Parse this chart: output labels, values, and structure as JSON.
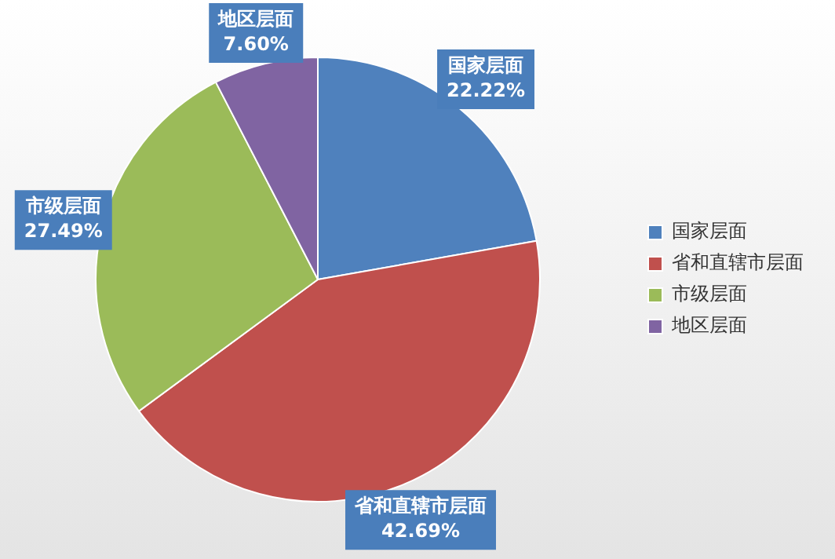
{
  "chart_data": {
    "type": "pie",
    "categories": [
      "国家层面",
      "省和直辖市层面",
      "市级层面",
      "地区层面"
    ],
    "values": [
      22.22,
      42.69,
      27.49,
      7.6
    ],
    "value_labels": [
      "22.22%",
      "42.69%",
      "27.49%",
      "7.60%"
    ],
    "colors": [
      "#4f81bd",
      "#c0504d",
      "#9bbb59",
      "#8064a2"
    ],
    "legend": "right"
  }
}
